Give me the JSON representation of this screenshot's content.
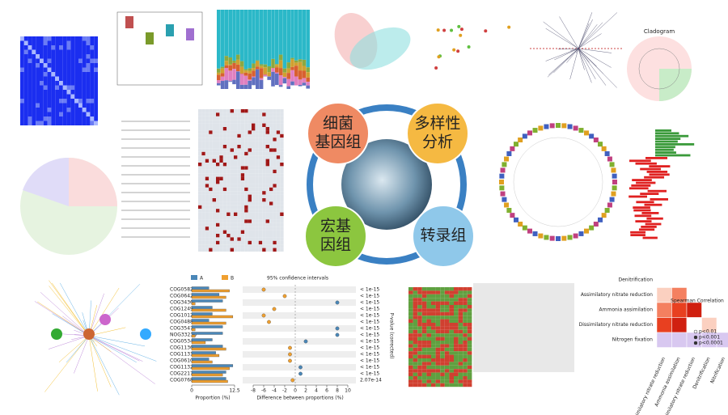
{
  "center": {
    "bubbles": [
      [
        "细菌",
        "基因组"
      ],
      [
        "多样性",
        "分析"
      ],
      [
        "宏基",
        "因组"
      ],
      [
        "转录组"
      ]
    ]
  },
  "cladogram": {
    "title": "Cladogram"
  },
  "cog_plot": {
    "legend": [
      "A",
      "B"
    ],
    "ci_title": "95% confidence intervals",
    "categories": [
      "COG0582",
      "COG0642",
      "COG3436",
      "COG1249",
      "COG1012",
      "COG0488",
      "COG3547",
      "NOG33236",
      "COG0534",
      "COG1136",
      "COG1131",
      "COG0610",
      "COG1132",
      "COG2217",
      "COG0768"
    ],
    "series": [
      {
        "name": "A",
        "color": "#4a87b8",
        "values": [
          5,
          8,
          9,
          6,
          6,
          5,
          9,
          9,
          6,
          9,
          7,
          5,
          12,
          10,
          10
        ]
      },
      {
        "name": "B",
        "color": "#f0a030",
        "values": [
          11,
          10,
          1,
          10,
          12,
          10,
          1,
          1,
          4,
          10,
          8,
          6,
          11,
          9,
          10.5
        ]
      }
    ],
    "differences": [
      -6,
      -2,
      8,
      -4,
      -6,
      -5,
      8,
      8,
      2,
      -1,
      -1,
      -1,
      1,
      1,
      -0.5
    ],
    "p_values": [
      "< 1e-15",
      "< 1e-15",
      "< 1e-15",
      "< 1e-15",
      "< 1e-15",
      "< 1e-15",
      "< 1e-15",
      "< 1e-15",
      "< 1e-15",
      "< 1e-15",
      "< 1e-15",
      "< 1e-15",
      "< 1e-15",
      "< 1e-15",
      "2.07e-14"
    ],
    "xlim_left": [
      0,
      12.5
    ],
    "xticks_left": [
      0,
      12.5
    ],
    "xlim_right": [
      -8,
      10
    ],
    "xticks_right": [
      -8,
      -6,
      -4,
      -2,
      0,
      2,
      4,
      6,
      8,
      10
    ],
    "xlabel_left": "Proportion (%)",
    "xlabel_right": "Difference between proportions (%)",
    "y2label": "P-value (corrected)"
  },
  "nitrogen": {
    "rows": [
      "Denitrification",
      "Assimilatory nitrate reduction",
      "Ammonia assimilation",
      "Dissimilatory nitrate reduction",
      "Nitrogen fixation"
    ],
    "columns": [
      "Dissimilatory nitrate reduction",
      "Ammonia assimilation",
      "Assimilatory nitrate reduction",
      "Denitrification",
      "Nitrification"
    ],
    "legend_title": "Spearman Correlation",
    "legend_p": [
      "p<0.01",
      "p<0.001",
      "p<0.0001"
    ]
  }
}
